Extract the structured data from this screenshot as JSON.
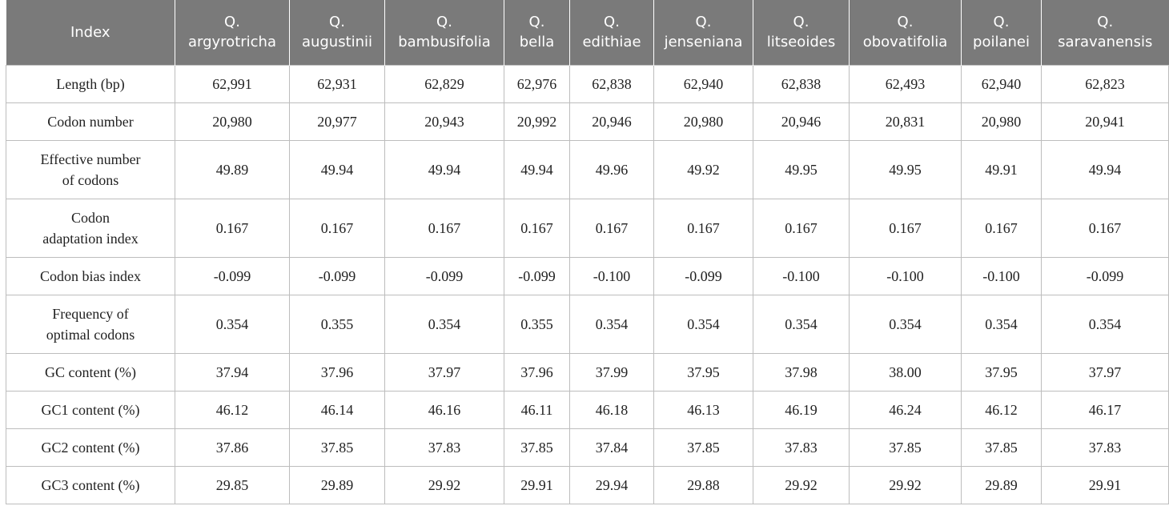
{
  "table": {
    "headers": [
      [
        "Index",
        ""
      ],
      [
        "Q.",
        "argyrotricha"
      ],
      [
        "Q.",
        "augustinii"
      ],
      [
        "Q.",
        "bambusifolia"
      ],
      [
        "Q.",
        "bella"
      ],
      [
        "Q.",
        "edithiae"
      ],
      [
        "Q.",
        "jenseniana"
      ],
      [
        "Q.",
        "litseoides"
      ],
      [
        "Q.",
        "obovatifolia"
      ],
      [
        "Q.",
        "poilanei"
      ],
      [
        "Q.",
        "saravanensis"
      ]
    ],
    "rows": [
      {
        "label": [
          "Length (bp)",
          ""
        ],
        "values": [
          "62,991",
          "62,931",
          "62,829",
          "62,976",
          "62,838",
          "62,940",
          "62,838",
          "62,493",
          "62,940",
          "62,823"
        ]
      },
      {
        "label": [
          "Codon number",
          ""
        ],
        "values": [
          "20,980",
          "20,977",
          "20,943",
          "20,992",
          "20,946",
          "20,980",
          "20,946",
          "20,831",
          "20,980",
          "20,941"
        ]
      },
      {
        "label": [
          "Effective number",
          "of codons"
        ],
        "values": [
          "49.89",
          "49.94",
          "49.94",
          "49.94",
          "49.96",
          "49.92",
          "49.95",
          "49.95",
          "49.91",
          "49.94"
        ]
      },
      {
        "label": [
          "Codon",
          "adaptation index"
        ],
        "values": [
          "0.167",
          "0.167",
          "0.167",
          "0.167",
          "0.167",
          "0.167",
          "0.167",
          "0.167",
          "0.167",
          "0.167"
        ]
      },
      {
        "label": [
          "Codon bias index",
          ""
        ],
        "values": [
          "-0.099",
          "-0.099",
          "-0.099",
          "-0.099",
          "-0.100",
          "-0.099",
          "-0.100",
          "-0.100",
          "-0.100",
          "-0.099"
        ]
      },
      {
        "label": [
          "Frequency of",
          "optimal codons"
        ],
        "values": [
          "0.354",
          "0.355",
          "0.354",
          "0.355",
          "0.354",
          "0.354",
          "0.354",
          "0.354",
          "0.354",
          "0.354"
        ]
      },
      {
        "label": [
          "GC content (%)",
          ""
        ],
        "values": [
          "37.94",
          "37.96",
          "37.97",
          "37.96",
          "37.99",
          "37.95",
          "37.98",
          "38.00",
          "37.95",
          "37.97"
        ]
      },
      {
        "label": [
          "GC1 content (%)",
          ""
        ],
        "values": [
          "46.12",
          "46.14",
          "46.16",
          "46.11",
          "46.18",
          "46.13",
          "46.19",
          "46.24",
          "46.12",
          "46.17"
        ]
      },
      {
        "label": [
          "GC2 content (%)",
          ""
        ],
        "values": [
          "37.86",
          "37.85",
          "37.83",
          "37.85",
          "37.84",
          "37.85",
          "37.83",
          "37.85",
          "37.85",
          "37.83"
        ]
      },
      {
        "label": [
          "GC3 content (%)",
          ""
        ],
        "values": [
          "29.85",
          "29.89",
          "29.92",
          "29.91",
          "29.94",
          "29.88",
          "29.92",
          "29.92",
          "29.89",
          "29.91"
        ]
      }
    ]
  },
  "colors": {
    "header_bg": "#7a7a7a",
    "header_text": "#ffffff",
    "cell_border": "#bdbdbd",
    "cell_text": "#222222"
  }
}
